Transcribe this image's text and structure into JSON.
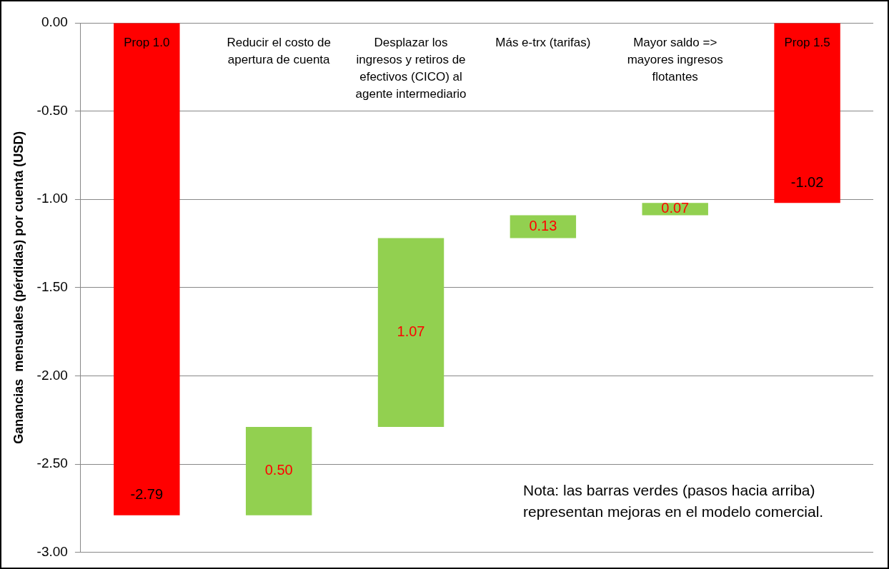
{
  "chart_data": {
    "type": "bar",
    "categories": [
      "Prop 1.0",
      "Reducir el costo de apertura de cuenta",
      "Desplazar los ingresos y retiros de efectivos (CICO) al agente intermediario",
      "Más e-trx (tarifas)",
      "Mayor saldo => mayores ingresos flotantes",
      "Prop 1.5"
    ],
    "values": [
      -2.79,
      0.5,
      1.07,
      0.13,
      0.07,
      -1.02
    ],
    "base": [
      0,
      -2.79,
      -2.29,
      -1.22,
      -1.09,
      0
    ],
    "colors": [
      "#ff0000",
      "#92d050",
      "#92d050",
      "#92d050",
      "#92d050",
      "#ff0000"
    ],
    "value_labels": [
      "-2.79",
      "0.50",
      "1.07",
      "0.13",
      "0.07",
      "-1.02"
    ],
    "ylabel": "Ganancias  mensuales (pérdidas) por cuenta (USD)",
    "ylim": [
      -3,
      0
    ],
    "yticks": [
      {
        "value": -3,
        "label": "-3.00"
      },
      {
        "value": -2.5,
        "label": "-2.50"
      },
      {
        "value": -2,
        "label": "-2.00"
      },
      {
        "value": -1.5,
        "label": "-1.50"
      },
      {
        "value": -1,
        "label": "-1.00"
      },
      {
        "value": -0.5,
        "label": "-0.50"
      },
      {
        "value": 0,
        "label": "0.00"
      }
    ],
    "grid": "y",
    "legend": false,
    "annotations": [
      "Nota: las barras verdes (pasos hacia arriba) representan mejoras en el modelo comercial."
    ]
  }
}
